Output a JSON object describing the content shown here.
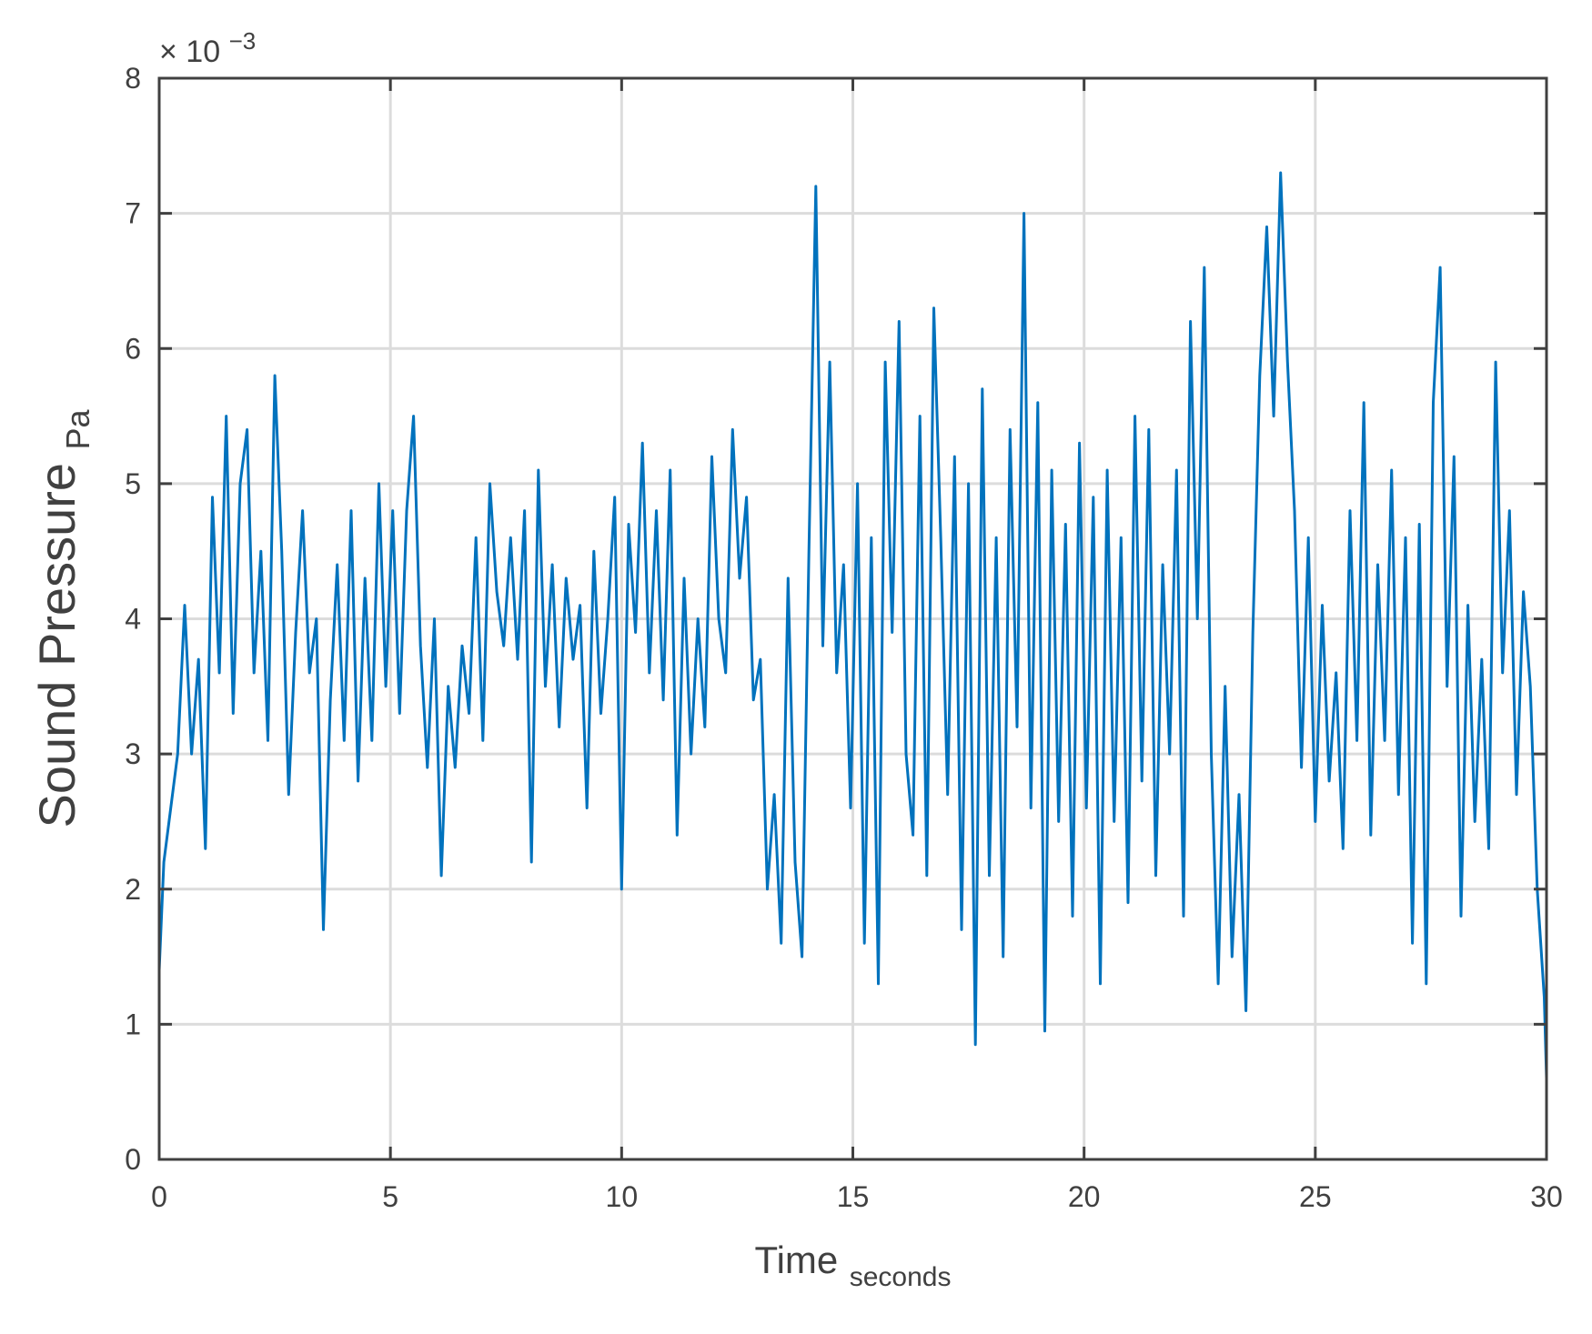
{
  "chart_data": {
    "type": "line",
    "title": "",
    "xlabel": "Time",
    "xlabel_sub": "seconds",
    "ylabel": "Sound Pressure",
    "ylabel_sub": "Pa",
    "y_exponent_prefix": "× 10",
    "y_exponent_power": "−3",
    "xlim": [
      0,
      30
    ],
    "ylim": [
      0,
      8
    ],
    "x_ticks": [
      0,
      5,
      10,
      15,
      20,
      25,
      30
    ],
    "y_ticks": [
      0,
      1,
      2,
      3,
      4,
      5,
      6,
      7,
      8
    ],
    "x_tick_labels": [
      "0",
      "5",
      "10",
      "15",
      "20",
      "25",
      "30"
    ],
    "y_tick_labels": [
      "0",
      "1",
      "2",
      "3",
      "4",
      "5",
      "6",
      "7",
      "8"
    ],
    "grid": true,
    "line_color": "#0072BD",
    "series": [
      {
        "x": [
          0.0,
          0.1,
          0.25,
          0.4,
          0.55,
          0.7,
          0.85,
          1.0,
          1.15,
          1.3,
          1.45,
          1.6,
          1.75,
          1.9,
          2.05,
          2.2,
          2.35,
          2.5,
          2.65,
          2.8,
          2.95,
          3.1,
          3.25,
          3.4,
          3.55,
          3.7,
          3.85,
          4.0,
          4.15,
          4.3,
          4.45,
          4.6,
          4.75,
          4.9,
          5.05,
          5.2,
          5.35,
          5.5,
          5.65,
          5.8,
          5.95,
          6.1,
          6.25,
          6.4,
          6.55,
          6.7,
          6.85,
          7.0,
          7.15,
          7.3,
          7.45,
          7.6,
          7.75,
          7.9,
          8.05,
          8.2,
          8.35,
          8.5,
          8.65,
          8.8,
          8.95,
          9.1,
          9.25,
          9.4,
          9.55,
          9.7,
          9.85,
          10.0,
          10.15,
          10.3,
          10.45,
          10.6,
          10.75,
          10.9,
          11.05,
          11.2,
          11.35,
          11.5,
          11.65,
          11.8,
          11.95,
          12.1,
          12.25,
          12.4,
          12.55,
          12.7,
          12.85,
          13.0,
          13.15,
          13.3,
          13.45,
          13.6,
          13.75,
          13.9,
          14.05,
          14.2,
          14.35,
          14.5,
          14.65,
          14.8,
          14.95,
          15.1,
          15.25,
          15.4,
          15.55,
          15.7,
          15.85,
          16.0,
          16.15,
          16.3,
          16.45,
          16.6,
          16.75,
          16.9,
          17.05,
          17.2,
          17.35,
          17.5,
          17.65,
          17.8,
          17.95,
          18.1,
          18.25,
          18.4,
          18.55,
          18.7,
          18.85,
          19.0,
          19.15,
          19.3,
          19.45,
          19.6,
          19.75,
          19.9,
          20.05,
          20.2,
          20.35,
          20.5,
          20.65,
          20.8,
          20.95,
          21.1,
          21.25,
          21.4,
          21.55,
          21.7,
          21.85,
          22.0,
          22.15,
          22.3,
          22.45,
          22.6,
          22.75,
          22.9,
          23.05,
          23.2,
          23.35,
          23.5,
          23.65,
          23.8,
          23.95,
          24.1,
          24.25,
          24.4,
          24.55,
          24.7,
          24.85,
          25.0,
          25.15,
          25.3,
          25.45,
          25.6,
          25.75,
          25.9,
          26.05,
          26.2,
          26.35,
          26.5,
          26.65,
          26.8,
          26.95,
          27.1,
          27.25,
          27.4,
          27.55,
          27.7,
          27.85,
          28.0,
          28.15,
          28.3,
          28.45,
          28.6,
          28.75,
          28.9,
          29.05,
          29.2,
          29.35,
          29.5,
          29.65,
          29.8,
          29.95,
          30.0
        ],
        "values": [
          1.4,
          2.2,
          2.6,
          3.0,
          4.1,
          3.0,
          3.7,
          2.3,
          4.9,
          3.6,
          5.5,
          3.3,
          5.0,
          5.4,
          3.6,
          4.5,
          3.1,
          5.8,
          4.5,
          2.7,
          3.9,
          4.8,
          3.6,
          4.0,
          1.7,
          3.4,
          4.4,
          3.1,
          4.8,
          2.8,
          4.3,
          3.1,
          5.0,
          3.5,
          4.8,
          3.3,
          4.8,
          5.5,
          3.8,
          2.9,
          4.0,
          2.1,
          3.5,
          2.9,
          3.8,
          3.3,
          4.6,
          3.1,
          5.0,
          4.2,
          3.8,
          4.6,
          3.7,
          4.8,
          2.2,
          5.1,
          3.5,
          4.4,
          3.2,
          4.3,
          3.7,
          4.1,
          2.6,
          4.5,
          3.3,
          4.0,
          4.9,
          2.0,
          4.7,
          3.9,
          5.3,
          3.6,
          4.8,
          3.4,
          5.1,
          2.4,
          4.3,
          3.0,
          4.0,
          3.2,
          5.2,
          4.0,
          3.6,
          5.4,
          4.3,
          4.9,
          3.4,
          3.7,
          2.0,
          2.7,
          1.6,
          4.3,
          2.2,
          1.5,
          4.5,
          7.2,
          3.8,
          5.9,
          3.6,
          4.4,
          2.6,
          5.0,
          1.6,
          4.6,
          1.3,
          5.9,
          3.9,
          6.2,
          3.0,
          2.4,
          5.5,
          2.1,
          6.3,
          4.6,
          2.7,
          5.2,
          1.7,
          5.0,
          0.85,
          5.7,
          2.1,
          4.6,
          1.5,
          5.4,
          3.2,
          7.0,
          2.6,
          5.6,
          0.95,
          5.1,
          2.5,
          4.7,
          1.8,
          5.3,
          2.6,
          4.9,
          1.3,
          5.1,
          2.5,
          4.6,
          1.9,
          5.5,
          2.8,
          5.4,
          2.1,
          4.4,
          3.0,
          5.1,
          1.8,
          6.2,
          4.0,
          6.6,
          3.0,
          1.3,
          3.5,
          1.5,
          2.7,
          1.1,
          3.9,
          5.8,
          6.9,
          5.5,
          7.3,
          5.9,
          4.8,
          2.9,
          4.6,
          2.5,
          4.1,
          2.8,
          3.6,
          2.3,
          4.8,
          3.1,
          5.6,
          2.4,
          4.4,
          3.1,
          5.1,
          2.7,
          4.6,
          1.6,
          4.7,
          1.3,
          5.6,
          6.6,
          3.5,
          5.2,
          1.8,
          4.1,
          2.5,
          3.7,
          2.3,
          5.9,
          3.6,
          4.8,
          2.7,
          4.2,
          3.5,
          2.0,
          1.2,
          0.6
        ]
      }
    ]
  }
}
